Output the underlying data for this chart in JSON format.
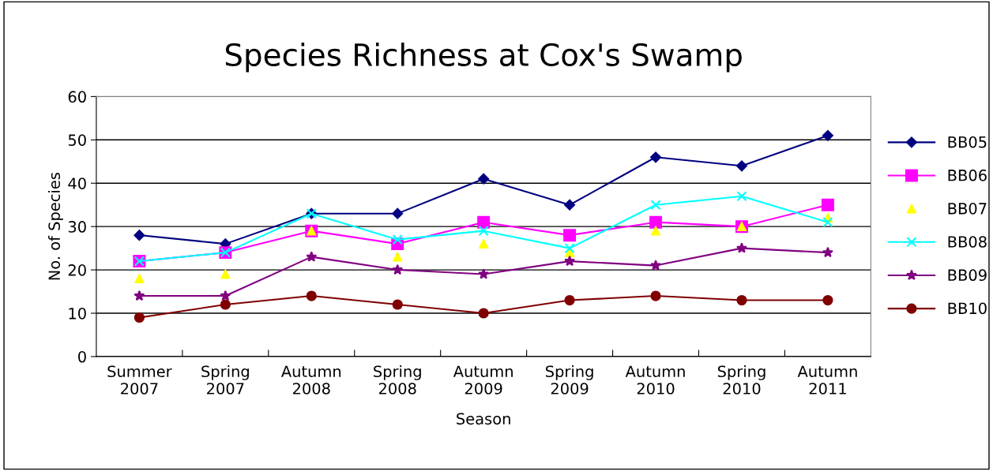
{
  "chart_data": {
    "type": "line",
    "title": "Species Richness at Cox's Swamp",
    "xlabel": "Season",
    "ylabel": "No. of Species",
    "categories": [
      "Summer\n2007",
      "Spring\n2007",
      "Autumn\n2008",
      "Spring\n2008",
      "Autumn\n2009",
      "Spring\n2009",
      "Autumn\n2010",
      "Spring\n2010",
      "Autumn\n2011"
    ],
    "series": [
      {
        "name": "BB05",
        "color": "#000080",
        "marker": "diamond",
        "values": [
          28,
          26,
          33,
          33,
          41,
          35,
          46,
          44,
          51
        ]
      },
      {
        "name": "BB06",
        "color": "#ff00ff",
        "marker": "square",
        "values": [
          22,
          24,
          29,
          26,
          31,
          28,
          31,
          30,
          35
        ]
      },
      {
        "name": "BB07",
        "type": "scatter",
        "color": "#ffff00",
        "marker": "triangle",
        "values": [
          18,
          19,
          29,
          23,
          26,
          24,
          29,
          30,
          32
        ]
      },
      {
        "name": "BB08",
        "color": "#00ffff",
        "marker": "cross",
        "values": [
          22,
          24,
          33,
          27,
          29,
          25,
          35,
          37,
          31
        ]
      },
      {
        "name": "BB09",
        "color": "#800080",
        "marker": "star",
        "values": [
          14,
          14,
          23,
          20,
          19,
          22,
          21,
          25,
          24
        ]
      },
      {
        "name": "BB10",
        "color": "#800000",
        "marker": "circle",
        "values": [
          9,
          12,
          14,
          12,
          10,
          13,
          14,
          13,
          13
        ]
      }
    ],
    "ylim": [
      0,
      60
    ],
    "yticks": [
      0,
      10,
      20,
      30,
      40,
      50,
      60
    ],
    "grid": "y",
    "legend": "right"
  }
}
